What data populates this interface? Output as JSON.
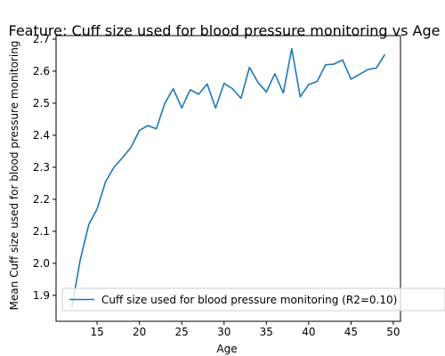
{
  "chart_data": {
    "type": "line",
    "title": "Feature: Cuff size used for blood pressure monitoring vs Age",
    "xlabel": "Age",
    "ylabel": "Mean Cuff size used for blood pressure monitoring",
    "xlim": [
      10.15,
      50.85
    ],
    "ylim": [
      1.819,
      2.711
    ],
    "xticks": [
      15,
      20,
      25,
      30,
      35,
      40,
      45,
      50
    ],
    "xtick_labels": [
      "15",
      "20",
      "25",
      "30",
      "35",
      "40",
      "45",
      "50"
    ],
    "yticks": [
      1.9,
      2.0,
      2.1,
      2.2,
      2.3,
      2.4,
      2.5,
      2.6,
      2.7
    ],
    "ytick_labels": [
      "1.9",
      "2.0",
      "2.1",
      "2.2",
      "2.3",
      "2.4",
      "2.5",
      "2.6",
      "2.7"
    ],
    "grid": false,
    "legend_position": "lower-right",
    "series": [
      {
        "name": "Cuff size used for blood pressure monitoring (R2=0.10)",
        "color": "#1f77b4",
        "x": [
          12,
          13,
          14,
          15,
          16,
          17,
          18,
          19,
          20,
          21,
          22,
          23,
          24,
          25,
          26,
          27,
          28,
          29,
          30,
          31,
          32,
          33,
          34,
          35,
          36,
          37,
          38,
          39,
          40,
          41,
          42,
          43,
          44,
          45,
          46,
          47,
          48,
          49
        ],
        "y": [
          1.86,
          2.01,
          2.12,
          2.17,
          2.255,
          2.3,
          2.33,
          2.362,
          2.415,
          2.43,
          2.42,
          2.5,
          2.545,
          2.485,
          2.542,
          2.528,
          2.56,
          2.485,
          2.562,
          2.545,
          2.515,
          2.612,
          2.565,
          2.535,
          2.592,
          2.532,
          2.67,
          2.52,
          2.558,
          2.568,
          2.62,
          2.622,
          2.635,
          2.575,
          2.59,
          2.605,
          2.61,
          2.652
        ]
      }
    ]
  }
}
